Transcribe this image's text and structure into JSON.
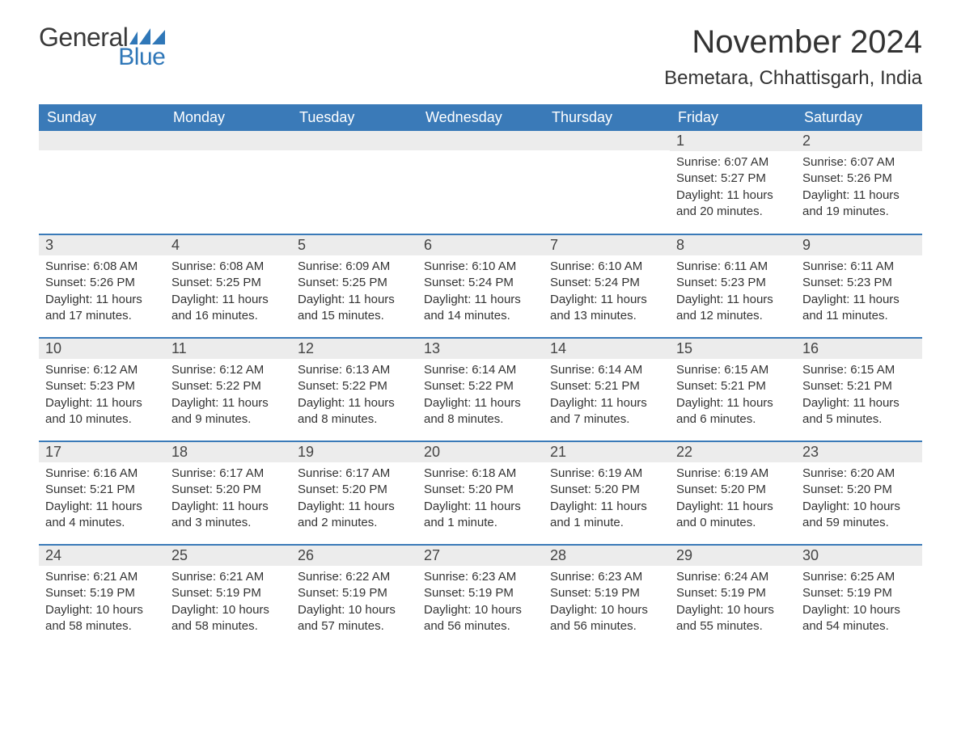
{
  "brand": {
    "general": "General",
    "blue": "Blue",
    "flag_color": "#2f77b8"
  },
  "title": "November 2024",
  "location": "Bemetara, Chhattisgarh, India",
  "header_bg": "#3a7ab8",
  "header_fg": "#ffffff",
  "daynum_bg": "#ececec",
  "week_border": "#3a7ab8",
  "text_color": "#333333",
  "font_family": "Arial, Helvetica, sans-serif",
  "title_fontsize": 40,
  "location_fontsize": 24,
  "cell_fontsize": 15,
  "columns": [
    "Sunday",
    "Monday",
    "Tuesday",
    "Wednesday",
    "Thursday",
    "Friday",
    "Saturday"
  ],
  "weeks": [
    [
      {
        "n": "",
        "sr": "",
        "ss": "",
        "dl": ""
      },
      {
        "n": "",
        "sr": "",
        "ss": "",
        "dl": ""
      },
      {
        "n": "",
        "sr": "",
        "ss": "",
        "dl": ""
      },
      {
        "n": "",
        "sr": "",
        "ss": "",
        "dl": ""
      },
      {
        "n": "",
        "sr": "",
        "ss": "",
        "dl": ""
      },
      {
        "n": "1",
        "sr": "Sunrise: 6:07 AM",
        "ss": "Sunset: 5:27 PM",
        "dl": "Daylight: 11 hours and 20 minutes."
      },
      {
        "n": "2",
        "sr": "Sunrise: 6:07 AM",
        "ss": "Sunset: 5:26 PM",
        "dl": "Daylight: 11 hours and 19 minutes."
      }
    ],
    [
      {
        "n": "3",
        "sr": "Sunrise: 6:08 AM",
        "ss": "Sunset: 5:26 PM",
        "dl": "Daylight: 11 hours and 17 minutes."
      },
      {
        "n": "4",
        "sr": "Sunrise: 6:08 AM",
        "ss": "Sunset: 5:25 PM",
        "dl": "Daylight: 11 hours and 16 minutes."
      },
      {
        "n": "5",
        "sr": "Sunrise: 6:09 AM",
        "ss": "Sunset: 5:25 PM",
        "dl": "Daylight: 11 hours and 15 minutes."
      },
      {
        "n": "6",
        "sr": "Sunrise: 6:10 AM",
        "ss": "Sunset: 5:24 PM",
        "dl": "Daylight: 11 hours and 14 minutes."
      },
      {
        "n": "7",
        "sr": "Sunrise: 6:10 AM",
        "ss": "Sunset: 5:24 PM",
        "dl": "Daylight: 11 hours and 13 minutes."
      },
      {
        "n": "8",
        "sr": "Sunrise: 6:11 AM",
        "ss": "Sunset: 5:23 PM",
        "dl": "Daylight: 11 hours and 12 minutes."
      },
      {
        "n": "9",
        "sr": "Sunrise: 6:11 AM",
        "ss": "Sunset: 5:23 PM",
        "dl": "Daylight: 11 hours and 11 minutes."
      }
    ],
    [
      {
        "n": "10",
        "sr": "Sunrise: 6:12 AM",
        "ss": "Sunset: 5:23 PM",
        "dl": "Daylight: 11 hours and 10 minutes."
      },
      {
        "n": "11",
        "sr": "Sunrise: 6:12 AM",
        "ss": "Sunset: 5:22 PM",
        "dl": "Daylight: 11 hours and 9 minutes."
      },
      {
        "n": "12",
        "sr": "Sunrise: 6:13 AM",
        "ss": "Sunset: 5:22 PM",
        "dl": "Daylight: 11 hours and 8 minutes."
      },
      {
        "n": "13",
        "sr": "Sunrise: 6:14 AM",
        "ss": "Sunset: 5:22 PM",
        "dl": "Daylight: 11 hours and 8 minutes."
      },
      {
        "n": "14",
        "sr": "Sunrise: 6:14 AM",
        "ss": "Sunset: 5:21 PM",
        "dl": "Daylight: 11 hours and 7 minutes."
      },
      {
        "n": "15",
        "sr": "Sunrise: 6:15 AM",
        "ss": "Sunset: 5:21 PM",
        "dl": "Daylight: 11 hours and 6 minutes."
      },
      {
        "n": "16",
        "sr": "Sunrise: 6:15 AM",
        "ss": "Sunset: 5:21 PM",
        "dl": "Daylight: 11 hours and 5 minutes."
      }
    ],
    [
      {
        "n": "17",
        "sr": "Sunrise: 6:16 AM",
        "ss": "Sunset: 5:21 PM",
        "dl": "Daylight: 11 hours and 4 minutes."
      },
      {
        "n": "18",
        "sr": "Sunrise: 6:17 AM",
        "ss": "Sunset: 5:20 PM",
        "dl": "Daylight: 11 hours and 3 minutes."
      },
      {
        "n": "19",
        "sr": "Sunrise: 6:17 AM",
        "ss": "Sunset: 5:20 PM",
        "dl": "Daylight: 11 hours and 2 minutes."
      },
      {
        "n": "20",
        "sr": "Sunrise: 6:18 AM",
        "ss": "Sunset: 5:20 PM",
        "dl": "Daylight: 11 hours and 1 minute."
      },
      {
        "n": "21",
        "sr": "Sunrise: 6:19 AM",
        "ss": "Sunset: 5:20 PM",
        "dl": "Daylight: 11 hours and 1 minute."
      },
      {
        "n": "22",
        "sr": "Sunrise: 6:19 AM",
        "ss": "Sunset: 5:20 PM",
        "dl": "Daylight: 11 hours and 0 minutes."
      },
      {
        "n": "23",
        "sr": "Sunrise: 6:20 AM",
        "ss": "Sunset: 5:20 PM",
        "dl": "Daylight: 10 hours and 59 minutes."
      }
    ],
    [
      {
        "n": "24",
        "sr": "Sunrise: 6:21 AM",
        "ss": "Sunset: 5:19 PM",
        "dl": "Daylight: 10 hours and 58 minutes."
      },
      {
        "n": "25",
        "sr": "Sunrise: 6:21 AM",
        "ss": "Sunset: 5:19 PM",
        "dl": "Daylight: 10 hours and 58 minutes."
      },
      {
        "n": "26",
        "sr": "Sunrise: 6:22 AM",
        "ss": "Sunset: 5:19 PM",
        "dl": "Daylight: 10 hours and 57 minutes."
      },
      {
        "n": "27",
        "sr": "Sunrise: 6:23 AM",
        "ss": "Sunset: 5:19 PM",
        "dl": "Daylight: 10 hours and 56 minutes."
      },
      {
        "n": "28",
        "sr": "Sunrise: 6:23 AM",
        "ss": "Sunset: 5:19 PM",
        "dl": "Daylight: 10 hours and 56 minutes."
      },
      {
        "n": "29",
        "sr": "Sunrise: 6:24 AM",
        "ss": "Sunset: 5:19 PM",
        "dl": "Daylight: 10 hours and 55 minutes."
      },
      {
        "n": "30",
        "sr": "Sunrise: 6:25 AM",
        "ss": "Sunset: 5:19 PM",
        "dl": "Daylight: 10 hours and 54 minutes."
      }
    ]
  ]
}
